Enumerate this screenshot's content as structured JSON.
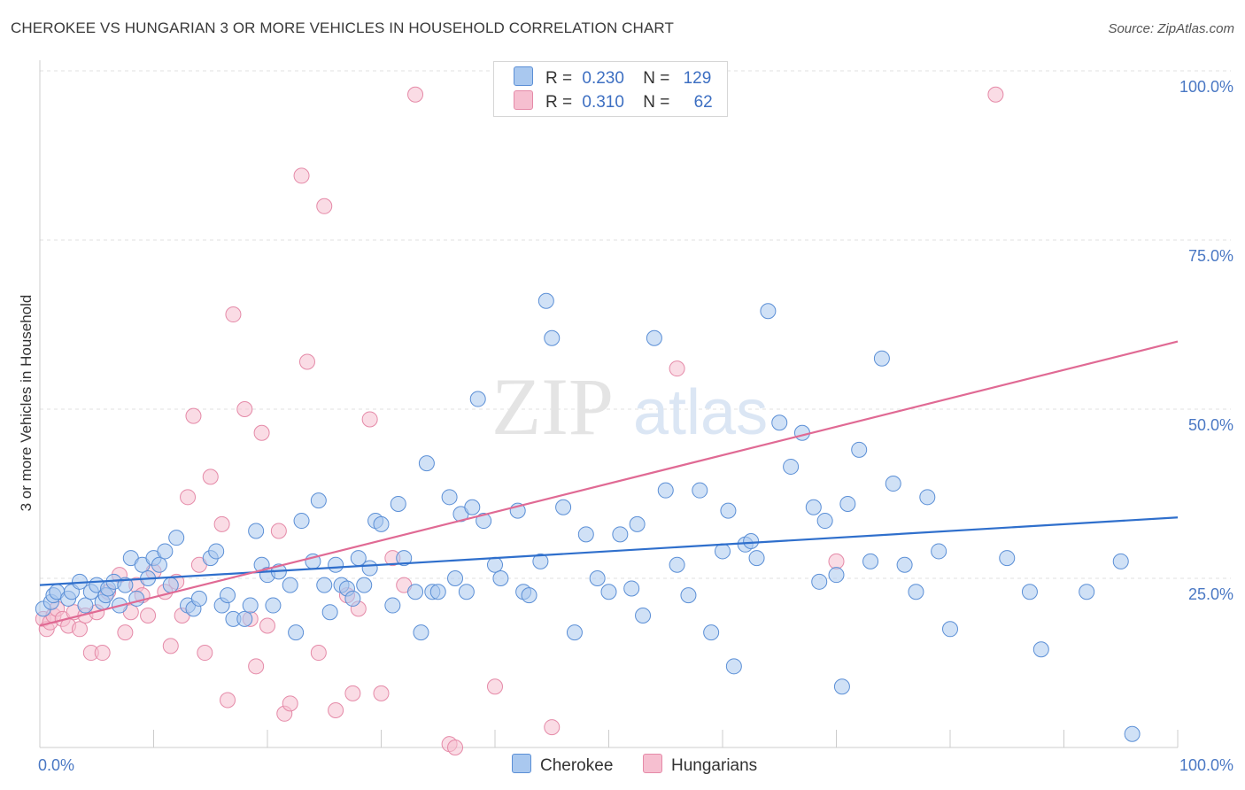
{
  "title": "CHEROKEE VS HUNGARIAN 3 OR MORE VEHICLES IN HOUSEHOLD CORRELATION CHART",
  "source": "Source: ZipAtlas.com",
  "colors": {
    "cherokee_fill": "#a9c8ef",
    "cherokee_stroke": "#5b8fd6",
    "cherokee_line": "#2f6fcc",
    "hungarian_fill": "#f6bfd0",
    "hungarian_stroke": "#e58aa8",
    "hungarian_line": "#e06a94",
    "tick_text": "#4a78c4"
  },
  "legend": {
    "rows": [
      {
        "r_label": "R =",
        "r_value": "0.230",
        "n_label": "N =",
        "n_value": "129"
      },
      {
        "r_label": "R =",
        "r_value": "0.310",
        "n_label": "N =",
        "n_value": "62"
      }
    ],
    "bottom": [
      "Cherokee",
      "Hungarians"
    ]
  },
  "watermark": {
    "zip": "ZIP",
    "atlas": "atlas"
  },
  "chart_data": {
    "type": "scatter",
    "xlabel": "",
    "ylabel": "3 or more Vehicles in Household",
    "xlim": [
      0,
      100
    ],
    "ylim": [
      0,
      100
    ],
    "x_tick_labels": [
      "0.0%",
      "100.0%"
    ],
    "y_tick_labels": [
      "25.0%",
      "50.0%",
      "75.0%",
      "100.0%"
    ],
    "y_ticks": [
      25,
      50,
      75,
      100
    ],
    "grid": true,
    "legend_placement": "top-center",
    "series": [
      {
        "name": "Cherokee",
        "trend": [
          [
            0,
            24.0
          ],
          [
            100,
            34.0
          ]
        ],
        "points": [
          [
            0.3,
            20.5
          ],
          [
            1,
            21.5
          ],
          [
            1.2,
            22.5
          ],
          [
            1.5,
            23
          ],
          [
            2.5,
            22
          ],
          [
            2.8,
            23
          ],
          [
            3.5,
            24.5
          ],
          [
            4,
            21
          ],
          [
            4.5,
            23
          ],
          [
            5,
            24
          ],
          [
            5.5,
            21.5
          ],
          [
            5.8,
            22.5
          ],
          [
            6,
            23.5
          ],
          [
            6.5,
            24.5
          ],
          [
            7,
            21
          ],
          [
            7.5,
            24
          ],
          [
            8,
            28
          ],
          [
            8.5,
            22
          ],
          [
            9,
            27
          ],
          [
            9.5,
            25
          ],
          [
            10,
            28
          ],
          [
            10.5,
            27
          ],
          [
            11,
            29
          ],
          [
            11.5,
            24
          ],
          [
            12,
            31
          ],
          [
            13,
            21
          ],
          [
            13.5,
            20.5
          ],
          [
            14,
            22
          ],
          [
            15,
            28
          ],
          [
            15.5,
            29
          ],
          [
            16,
            21
          ],
          [
            16.5,
            22.5
          ],
          [
            17,
            19
          ],
          [
            18,
            19
          ],
          [
            18.5,
            21
          ],
          [
            19,
            32
          ],
          [
            19.5,
            27
          ],
          [
            20,
            25.5
          ],
          [
            20.5,
            21
          ],
          [
            21,
            26
          ],
          [
            22,
            24
          ],
          [
            22.5,
            17
          ],
          [
            23,
            33.5
          ],
          [
            24,
            27.5
          ],
          [
            24.5,
            36.5
          ],
          [
            25,
            24
          ],
          [
            25.5,
            20
          ],
          [
            26,
            27
          ],
          [
            26.5,
            24
          ],
          [
            27,
            23.5
          ],
          [
            27.5,
            22
          ],
          [
            28,
            28
          ],
          [
            28.5,
            24
          ],
          [
            29,
            26.5
          ],
          [
            29.5,
            33.5
          ],
          [
            30,
            33
          ],
          [
            31,
            21
          ],
          [
            31.5,
            36
          ],
          [
            32,
            28
          ],
          [
            33,
            23
          ],
          [
            33.5,
            17
          ],
          [
            34,
            42
          ],
          [
            34.5,
            23
          ],
          [
            35,
            23
          ],
          [
            36,
            37
          ],
          [
            36.5,
            25
          ],
          [
            37,
            34.5
          ],
          [
            37.5,
            23
          ],
          [
            38,
            35.5
          ],
          [
            38.5,
            51.5
          ],
          [
            39,
            33.5
          ],
          [
            40,
            27
          ],
          [
            40.5,
            25
          ],
          [
            42,
            35
          ],
          [
            42.5,
            23
          ],
          [
            43,
            22.5
          ],
          [
            44,
            27.5
          ],
          [
            44.5,
            66
          ],
          [
            45,
            60.5
          ],
          [
            46,
            35.5
          ],
          [
            47,
            17
          ],
          [
            48,
            31.5
          ],
          [
            49,
            25
          ],
          [
            50,
            23
          ],
          [
            51,
            31.5
          ],
          [
            52,
            23.5
          ],
          [
            52.5,
            33
          ],
          [
            53,
            19.5
          ],
          [
            54,
            60.5
          ],
          [
            55,
            38
          ],
          [
            56,
            27
          ],
          [
            57,
            22.5
          ],
          [
            58,
            38
          ],
          [
            59,
            17
          ],
          [
            60,
            29
          ],
          [
            60.5,
            35
          ],
          [
            61,
            12
          ],
          [
            62,
            30
          ],
          [
            62.5,
            30.5
          ],
          [
            63,
            28
          ],
          [
            64,
            64.5
          ],
          [
            65,
            48
          ],
          [
            66,
            41.5
          ],
          [
            67,
            46.5
          ],
          [
            68,
            35.5
          ],
          [
            68.5,
            24.5
          ],
          [
            69,
            33.5
          ],
          [
            70,
            25.5
          ],
          [
            70.5,
            9
          ],
          [
            71,
            36
          ],
          [
            72,
            44
          ],
          [
            73,
            27.5
          ],
          [
            74,
            57.5
          ],
          [
            75,
            39
          ],
          [
            76,
            27
          ],
          [
            77,
            23
          ],
          [
            78,
            37
          ],
          [
            79,
            29
          ],
          [
            80,
            17.5
          ],
          [
            85,
            28
          ],
          [
            87,
            23
          ],
          [
            88,
            14.5
          ],
          [
            92,
            23
          ],
          [
            95,
            27.5
          ],
          [
            96,
            2
          ]
        ]
      },
      {
        "name": "Hungarians",
        "trend": [
          [
            0,
            18.0
          ],
          [
            100,
            60.0
          ]
        ],
        "points": [
          [
            0.3,
            19
          ],
          [
            0.6,
            17.5
          ],
          [
            0.9,
            18.5
          ],
          [
            1.2,
            19.5
          ],
          [
            1.5,
            20.5
          ],
          [
            2,
            19
          ],
          [
            2.5,
            18
          ],
          [
            3,
            20
          ],
          [
            3.5,
            17.5
          ],
          [
            4,
            19.5
          ],
          [
            4.5,
            14
          ],
          [
            5,
            20
          ],
          [
            5.5,
            14
          ],
          [
            6,
            23
          ],
          [
            7,
            25.5
          ],
          [
            7.5,
            17
          ],
          [
            8,
            20
          ],
          [
            8.5,
            24
          ],
          [
            9,
            22.5
          ],
          [
            9.5,
            19.5
          ],
          [
            10,
            26
          ],
          [
            11,
            23
          ],
          [
            11.5,
            15
          ],
          [
            12,
            24.5
          ],
          [
            12.5,
            19.5
          ],
          [
            13,
            37
          ],
          [
            13.5,
            49
          ],
          [
            14,
            27
          ],
          [
            14.5,
            14
          ],
          [
            15,
            40
          ],
          [
            16,
            33
          ],
          [
            16.5,
            7
          ],
          [
            17,
            64
          ],
          [
            18,
            50
          ],
          [
            18.5,
            19
          ],
          [
            19,
            12
          ],
          [
            19.5,
            46.5
          ],
          [
            20,
            18
          ],
          [
            21,
            32
          ],
          [
            21.5,
            5
          ],
          [
            22,
            6.5
          ],
          [
            23,
            84.5
          ],
          [
            23.5,
            57
          ],
          [
            24.5,
            14
          ],
          [
            25,
            80
          ],
          [
            26,
            5.5
          ],
          [
            27,
            22.5
          ],
          [
            27.5,
            8
          ],
          [
            28,
            20.5
          ],
          [
            29,
            48.5
          ],
          [
            30,
            8
          ],
          [
            31,
            28
          ],
          [
            32,
            24
          ],
          [
            33,
            96.5
          ],
          [
            36,
            0.5
          ],
          [
            36.5,
            0
          ],
          [
            40,
            9
          ],
          [
            45,
            3
          ],
          [
            56,
            56
          ],
          [
            70,
            27.5
          ],
          [
            84,
            96.5
          ]
        ]
      }
    ]
  }
}
